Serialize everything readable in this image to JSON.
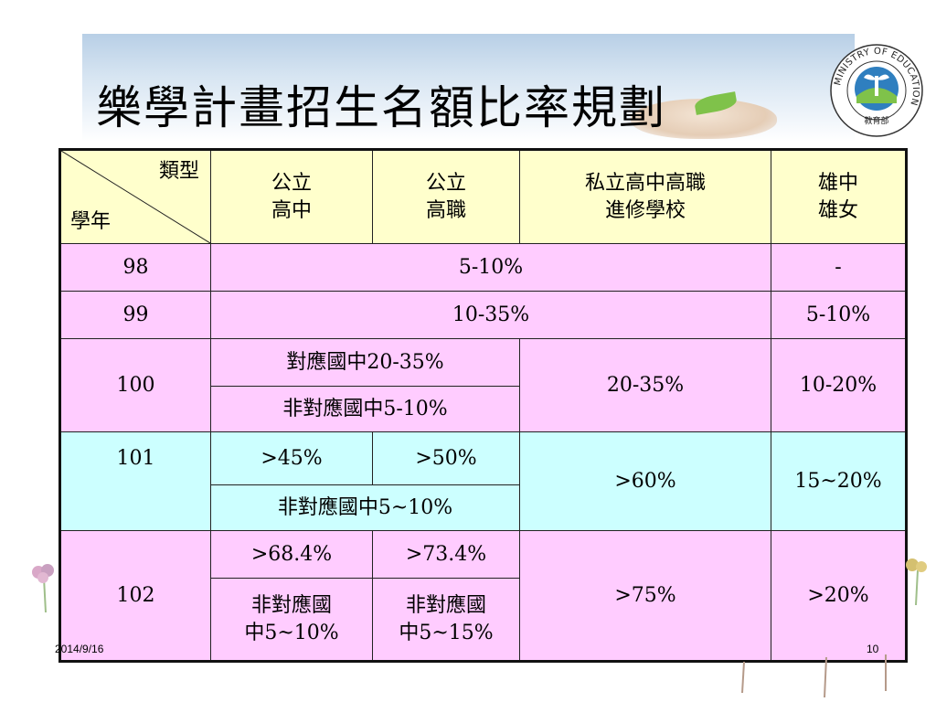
{
  "slide": {
    "title": "樂學計畫招生名額比率規劃",
    "date": "2014/9/16",
    "page_number": "10",
    "logo": {
      "ring_text": "MINISTRY OF EDUCATION",
      "center_text": "教育部",
      "icon": "education-ministry-seal"
    }
  },
  "table": {
    "header": {
      "corner_top": "類型",
      "corner_bottom": "學年",
      "columns": [
        {
          "line1": "公立",
          "line2": "高中"
        },
        {
          "line1": "公立",
          "line2": "高職"
        },
        {
          "line1": "私立高中高職",
          "line2": "進修學校"
        },
        {
          "line1": "雄中",
          "line2": "雄女"
        }
      ]
    },
    "rows": {
      "y98": {
        "year": "98",
        "span": "5-10%",
        "last": "-"
      },
      "y99": {
        "year": "99",
        "span": "10-35%",
        "last": "5-10%"
      },
      "y100": {
        "year": "100",
        "sub1": "對應國中20-35%",
        "sub2": "非對應國中5-10%",
        "private": "20-35%",
        "last": "10-20%"
      },
      "y101": {
        "year": "101",
        "high": ">45%",
        "voc": ">50%",
        "sub2": "非對應國中5~10%",
        "private": ">60%",
        "last": "15~20%"
      },
      "y102": {
        "year": "102",
        "high": ">68.4%",
        "voc": ">73.4%",
        "high_sub_line1": "非對應國",
        "high_sub_line2": "中5~10%",
        "voc_sub_line1": "非對應國",
        "voc_sub_line2": "中5~15%",
        "private": ">75%",
        "last": ">20%"
      }
    }
  },
  "colors": {
    "header_bg": "#ffffcc",
    "pink_row": "#ffccff",
    "cyan_row": "#ccffff"
  }
}
